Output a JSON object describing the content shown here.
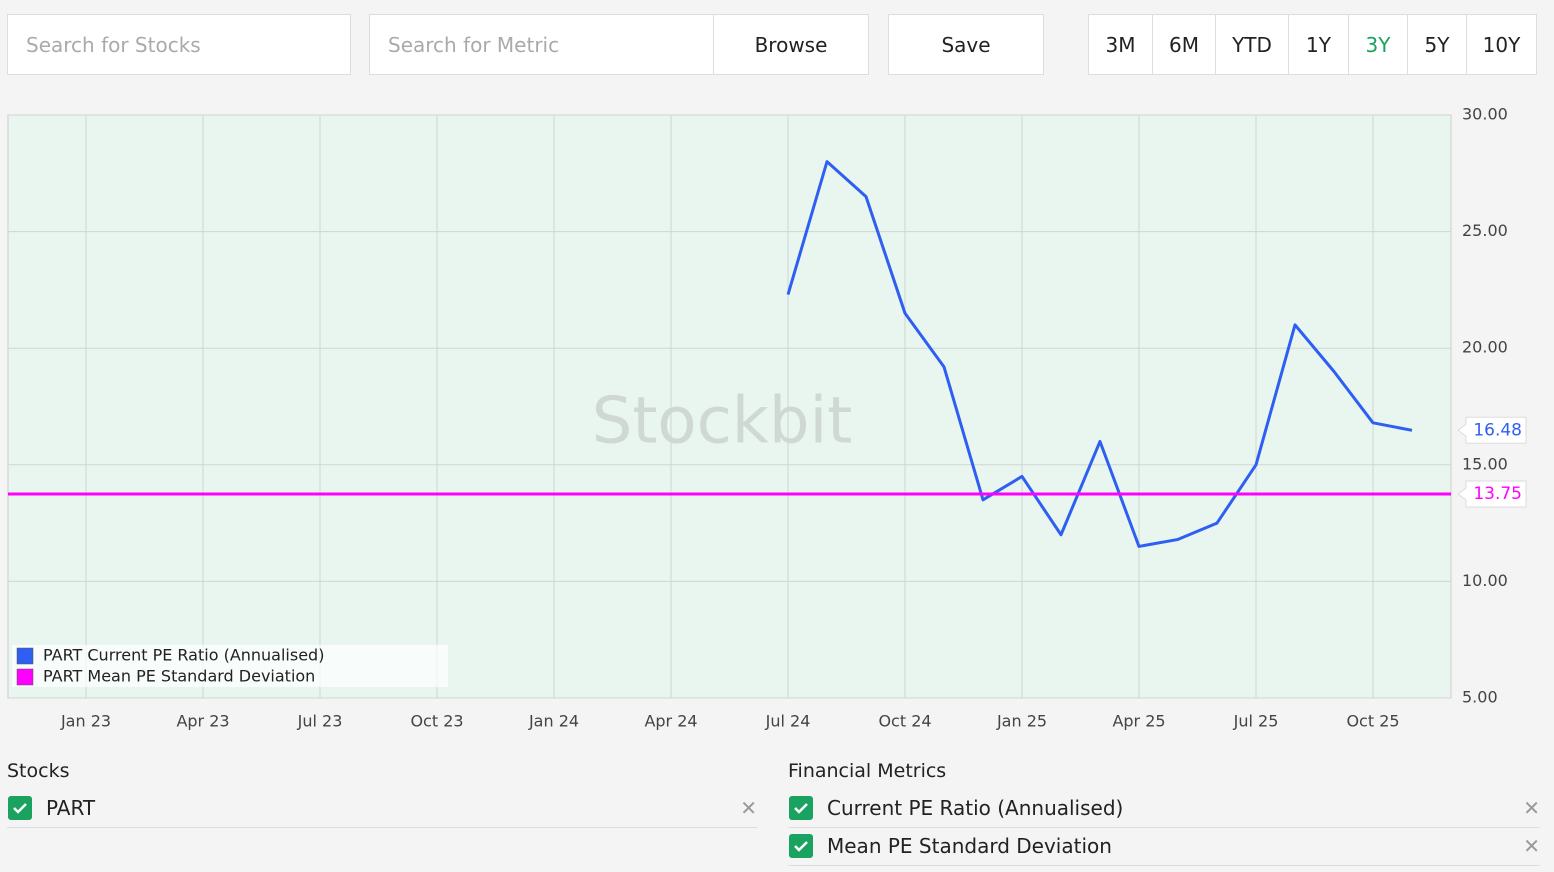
{
  "toolbar": {
    "stock_search_placeholder": "Search for Stocks",
    "metric_search_placeholder": "Search for Metric",
    "browse": "Browse",
    "save": "Save",
    "ranges": [
      "3M",
      "6M",
      "YTD",
      "1Y",
      "3Y",
      "5Y",
      "10Y"
    ],
    "active_range": "3Y"
  },
  "chart_data": {
    "type": "line",
    "watermark": "Stockbit",
    "xlim": [
      "2022-11",
      "2025-12"
    ],
    "xticks": [
      {
        "value": "2023-01",
        "label": "Jan 23"
      },
      {
        "value": "2023-04",
        "label": "Apr 23"
      },
      {
        "value": "2023-07",
        "label": "Jul 23"
      },
      {
        "value": "2023-10",
        "label": "Oct 23"
      },
      {
        "value": "2024-01",
        "label": "Jan 24"
      },
      {
        "value": "2024-04",
        "label": "Apr 24"
      },
      {
        "value": "2024-07",
        "label": "Jul 24"
      },
      {
        "value": "2024-10",
        "label": "Oct 24"
      },
      {
        "value": "2025-01",
        "label": "Jan 25"
      },
      {
        "value": "2025-04",
        "label": "Apr 25"
      },
      {
        "value": "2025-07",
        "label": "Jul 25"
      },
      {
        "value": "2025-10",
        "label": "Oct 25"
      }
    ],
    "ylim": [
      5,
      30
    ],
    "yticks": [
      {
        "value": 5,
        "label": "5.00"
      },
      {
        "value": 10,
        "label": "10.00"
      },
      {
        "value": 15,
        "label": "15.00"
      },
      {
        "value": 20,
        "label": "20.00"
      },
      {
        "value": 25,
        "label": "25.00"
      },
      {
        "value": 30,
        "label": "30.00"
      }
    ],
    "grid": true,
    "legend": "bottom-left",
    "series": [
      {
        "name": "PART Current PE Ratio (Annualised)",
        "color": "#2f5ff2",
        "x": [
          "2024-07",
          "2024-08",
          "2024-09",
          "2024-10",
          "2024-11",
          "2024-12",
          "2025-01",
          "2025-02",
          "2025-03",
          "2025-04",
          "2025-05",
          "2025-06",
          "2025-07",
          "2025-08",
          "2025-09",
          "2025-10",
          "2025-11"
        ],
        "values": [
          22.3,
          28.0,
          26.5,
          21.5,
          19.2,
          13.5,
          14.5,
          12.0,
          16.0,
          11.5,
          11.8,
          12.5,
          15.0,
          21.0,
          19.0,
          16.8,
          16.48
        ]
      },
      {
        "name": "PART Mean PE Standard Deviation",
        "color": "#ff00ff",
        "x": [
          "2022-11",
          "2025-12"
        ],
        "values": [
          13.75,
          13.75
        ]
      }
    ]
  },
  "stocks": {
    "title": "Stocks",
    "items": [
      "PART"
    ]
  },
  "metrics": {
    "title": "Financial Metrics",
    "items": [
      "Current PE Ratio (Annualised)",
      "Mean PE Standard Deviation"
    ]
  }
}
